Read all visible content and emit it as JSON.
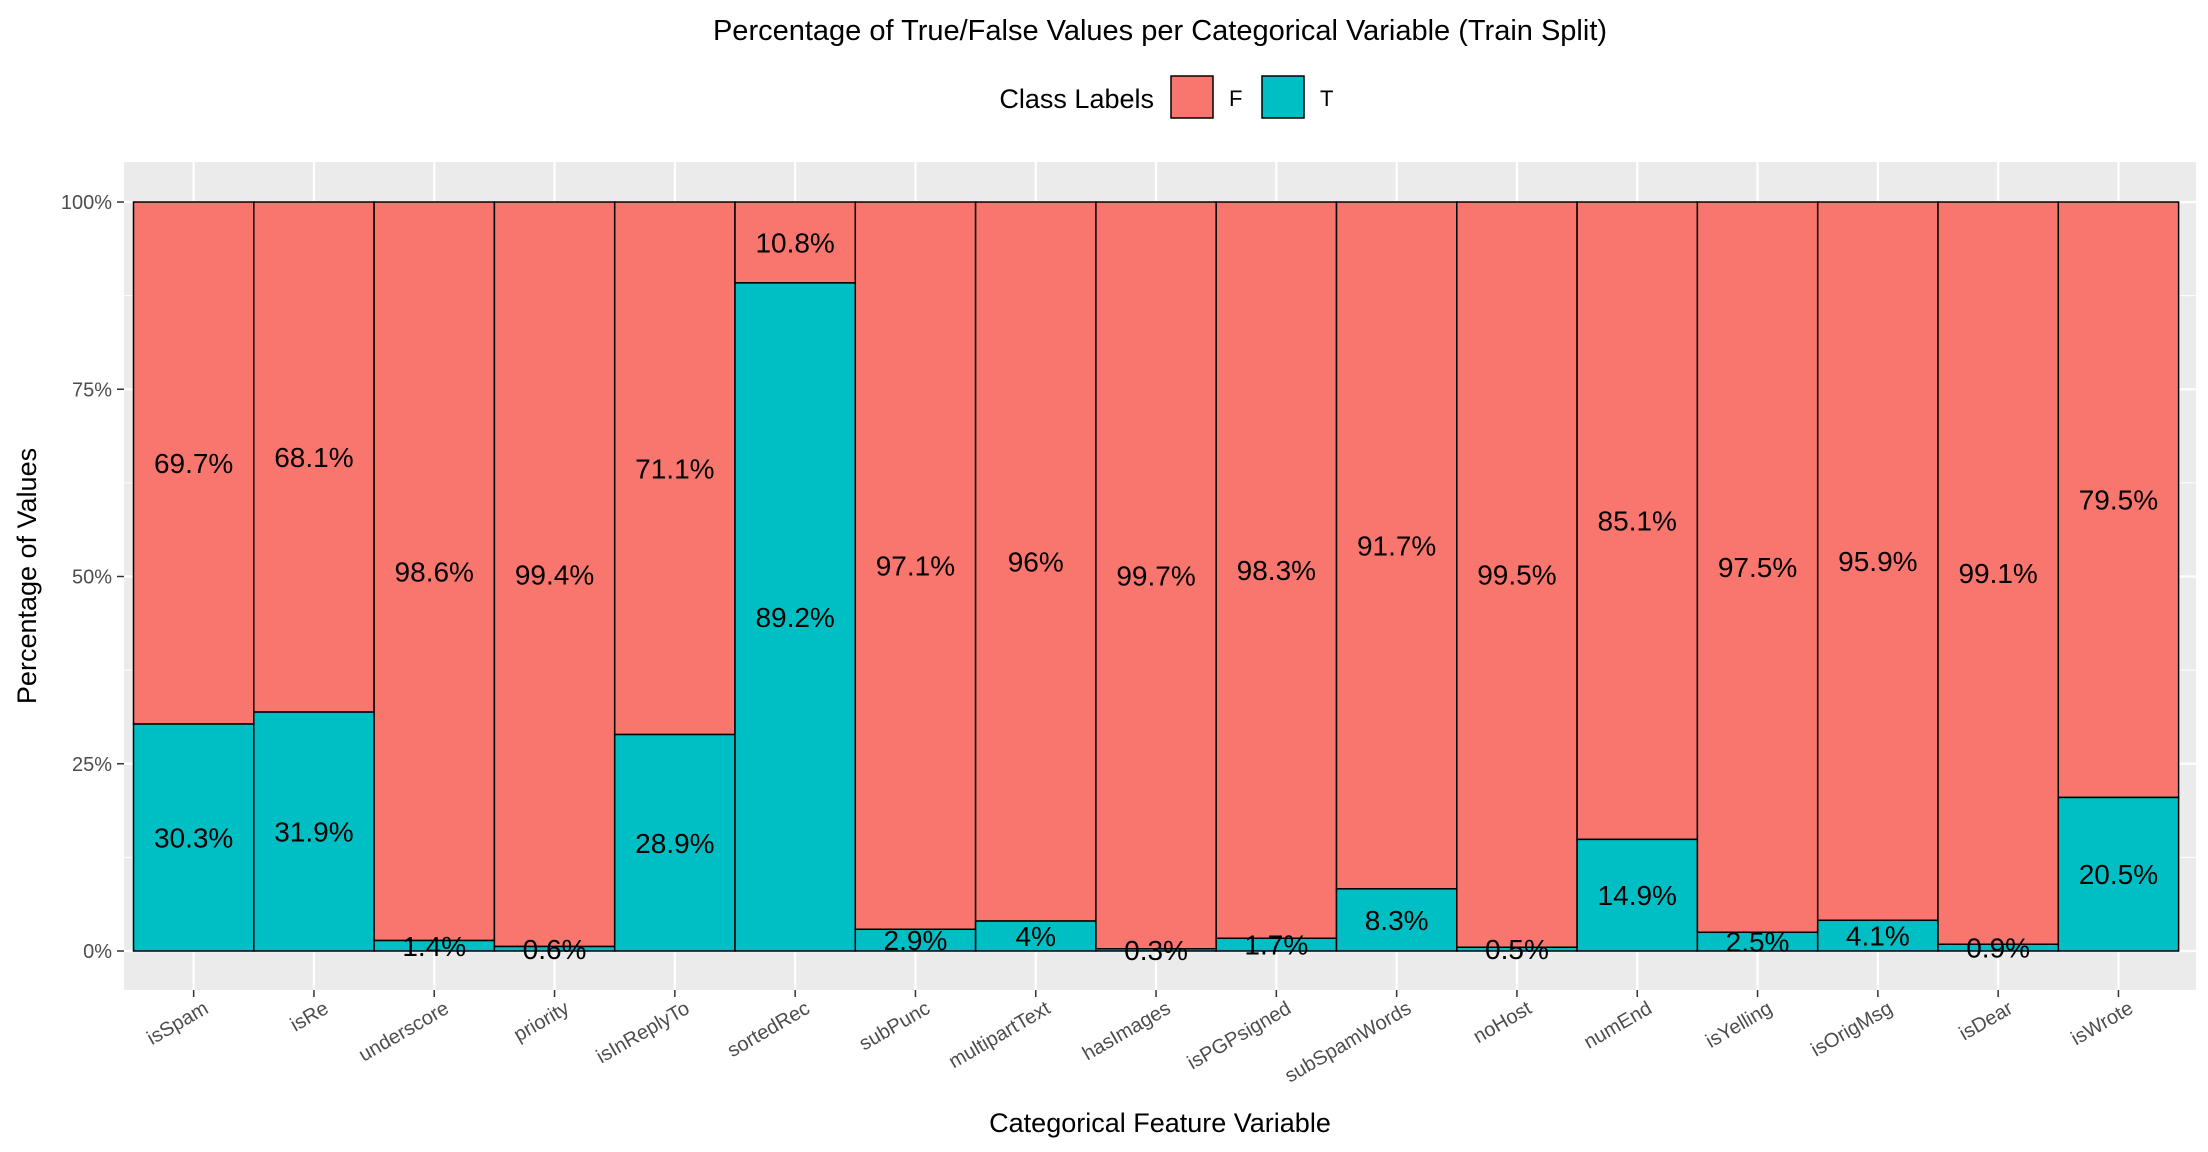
{
  "chart_data": {
    "type": "bar",
    "stacked": true,
    "title": "Percentage of True/False Values per Categorical Variable (Train Split)",
    "xlabel": "Categorical Feature Variable",
    "ylabel": "Percentage of Values",
    "ylim": [
      0,
      100
    ],
    "yticks": [
      "0%",
      "25%",
      "50%",
      "75%",
      "100%"
    ],
    "grid": true,
    "legend": {
      "title": "Class Labels",
      "position": "top",
      "entries": [
        "F",
        "T"
      ]
    },
    "colors": {
      "F": "#F8766D",
      "T": "#00BFC4",
      "panel": "#EBEBEB",
      "grid": "#ffffff"
    },
    "categories": [
      "isSpam",
      "isRe",
      "underscore",
      "priority",
      "isInReplyTo",
      "sortedRec",
      "subPunc",
      "multipartText",
      "hasImages",
      "isPGPsigned",
      "subSpamWords",
      "noHost",
      "numEnd",
      "isYelling",
      "isOrigMsg",
      "isDear",
      "isWrote"
    ],
    "series": [
      {
        "name": "F",
        "values": [
          69.7,
          68.1,
          98.6,
          99.4,
          71.1,
          10.8,
          97.1,
          96,
          99.7,
          98.3,
          91.7,
          99.5,
          85.1,
          97.5,
          95.9,
          99.1,
          79.5
        ],
        "labels": [
          "69.7%",
          "68.1%",
          "98.6%",
          "99.4%",
          "71.1%",
          "10.8%",
          "97.1%",
          "96%",
          "99.7%",
          "98.3%",
          "91.7%",
          "99.5%",
          "85.1%",
          "97.5%",
          "95.9%",
          "99.1%",
          "79.5%"
        ]
      },
      {
        "name": "T",
        "values": [
          30.3,
          31.9,
          1.4,
          0.6,
          28.9,
          89.2,
          2.9,
          4,
          0.3,
          1.7,
          8.3,
          0.5,
          14.9,
          2.5,
          4.1,
          0.9,
          20.5
        ],
        "labels": [
          "30.3%",
          "31.9%",
          "1.4%",
          "0.6%",
          "28.9%",
          "89.2%",
          "2.9%",
          "4%",
          "0.3%",
          "1.7%",
          "8.3%",
          "0.5%",
          "14.9%",
          "2.5%",
          "4.1%",
          "0.9%",
          "20.5%"
        ]
      }
    ]
  }
}
